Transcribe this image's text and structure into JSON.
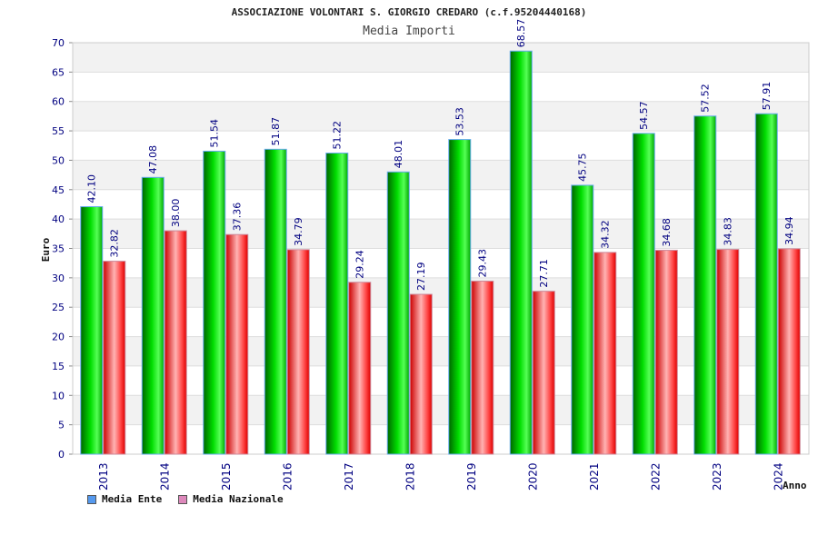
{
  "chart_data": {
    "type": "bar",
    "title": "ASSOCIAZIONE VOLONTARI S. GIORGIO CREDARO (c.f.95204440168)",
    "subtitle": "Media Importi",
    "xlabel": "Anno",
    "ylabel": "Euro",
    "ylim": [
      0,
      70
    ],
    "yticks": [
      "0",
      "5",
      "10",
      "15",
      "20",
      "25",
      "30",
      "35",
      "40",
      "45",
      "50",
      "55",
      "60",
      "65",
      "70"
    ],
    "categories": [
      "2013",
      "2014",
      "2015",
      "2016",
      "2017",
      "2018",
      "2019",
      "2020",
      "2021",
      "2022",
      "2023",
      "2024"
    ],
    "series": [
      {
        "name": "Media Ente",
        "color": "#00cc00",
        "legend_color": "#5599ee",
        "values": [
          42.1,
          47.08,
          51.54,
          51.87,
          51.22,
          48.01,
          53.53,
          68.57,
          45.75,
          54.57,
          57.52,
          57.91
        ],
        "labels": [
          "42.10",
          "47.08",
          "51.54",
          "51.87",
          "51.22",
          "48.01",
          "53.53",
          "68.57",
          "45.75",
          "54.57",
          "57.52",
          "57.91"
        ]
      },
      {
        "name": "Media Nazionale",
        "color": "#ff0000",
        "legend_color": "#dd88bb",
        "values": [
          32.82,
          38.0,
          37.36,
          34.79,
          29.24,
          27.19,
          29.43,
          27.71,
          34.32,
          34.68,
          34.83,
          34.94
        ],
        "labels": [
          "32.82",
          "38.00",
          "37.36",
          "34.79",
          "29.24",
          "27.19",
          "29.43",
          "27.71",
          "34.32",
          "34.68",
          "34.83",
          "34.94"
        ]
      }
    ],
    "grid": true,
    "legend_position": "bottom-left"
  }
}
